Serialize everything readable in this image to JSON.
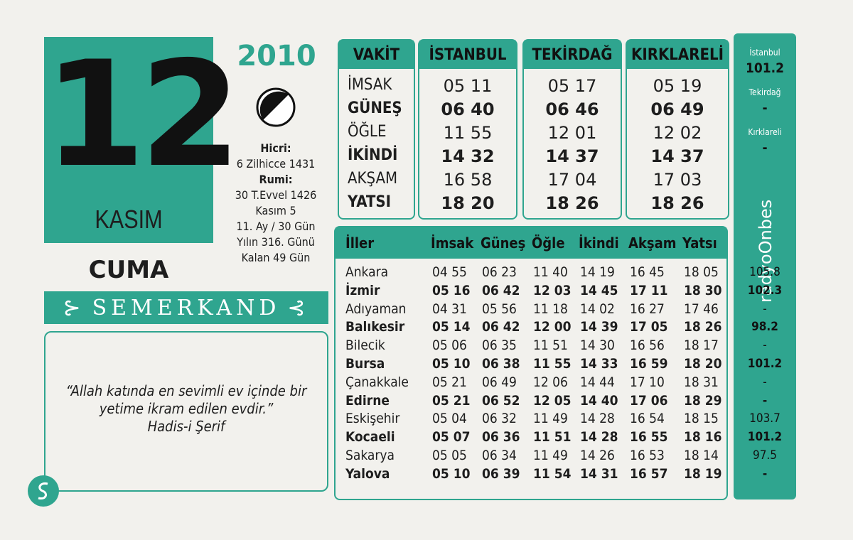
{
  "date": {
    "day": "12",
    "month": "KASIM",
    "year": "2010",
    "weekday": "CUMA"
  },
  "info": [
    {
      "text": "Hicri:",
      "bold": true
    },
    {
      "text": "6 Zilhicce 1431",
      "bold": false
    },
    {
      "text": "Rumi:",
      "bold": true
    },
    {
      "text": "30 T.Evvel 1426",
      "bold": false
    },
    {
      "text": "Kasım 5",
      "bold": false
    },
    {
      "text": "11. Ay / 30 Gün",
      "bold": false
    },
    {
      "text": "Yılın 316. Günü",
      "bold": false
    },
    {
      "text": "Kalan 49 Gün",
      "bold": false
    }
  ],
  "brand": "SEMERKAND",
  "quote": {
    "text": "“Allah katında en sevimli ev içinde bir yetime ikram edilen evdir.”",
    "source": "Hadis-i Şerif"
  },
  "prayer_table": {
    "headers": [
      "VAKİT",
      "İSTANBUL",
      "TEKİRDAĞ",
      "KIRKLARELİ"
    ],
    "rows": [
      [
        "İMSAK",
        "05 11",
        "05 17",
        "05 19"
      ],
      [
        "GÜNEŞ",
        "06 40",
        "06 46",
        "06 49"
      ],
      [
        "ÖĞLE",
        "11 55",
        "12 01",
        "12 02"
      ],
      [
        "İKİNDİ",
        "14 32",
        "14 37",
        "14 37"
      ],
      [
        "AKŞAM",
        "16 58",
        "17 04",
        "17 03"
      ],
      [
        "YATSI",
        "18 20",
        "18 26",
        "18 26"
      ]
    ]
  },
  "cities_table": {
    "headers": [
      "İller",
      "İmsak",
      "Güneş",
      "Öğle",
      "İkindi",
      "Akşam",
      "Yatsı"
    ],
    "rows": [
      [
        "Ankara",
        "04 55",
        "06 23",
        "11 40",
        "14 19",
        "16 45",
        "18 05"
      ],
      [
        "İzmir",
        "05 16",
        "06 42",
        "12 03",
        "14 45",
        "17 11",
        "18 30"
      ],
      [
        "Adıyaman",
        "04 31",
        "05 56",
        "11 18",
        "14 02",
        "16 27",
        "17 46"
      ],
      [
        "Balıkesir",
        "05 14",
        "06 42",
        "12 00",
        "14 39",
        "17 05",
        "18 26"
      ],
      [
        "Bilecik",
        "05 06",
        "06 35",
        "11 51",
        "14 30",
        "16 56",
        "18 17"
      ],
      [
        "Bursa",
        "05 10",
        "06 38",
        "11 55",
        "14 33",
        "16 59",
        "18 20"
      ],
      [
        "Çanakkale",
        "05 21",
        "06 49",
        "12 06",
        "14 44",
        "17 10",
        "18 31"
      ],
      [
        "Edirne",
        "05 21",
        "06 52",
        "12 05",
        "14 40",
        "17 06",
        "18 29"
      ],
      [
        "Eskişehir",
        "05 04",
        "06 32",
        "11 49",
        "14 28",
        "16 54",
        "18 15"
      ],
      [
        "Kocaeli",
        "05 07",
        "06 36",
        "11 51",
        "14 28",
        "16 55",
        "18 16"
      ],
      [
        "Sakarya",
        "05 05",
        "06 34",
        "11 49",
        "14 26",
        "16 53",
        "18 14"
      ],
      [
        "Yalova",
        "05 10",
        "06 39",
        "11 54",
        "14 31",
        "16 57",
        "18 19"
      ]
    ]
  },
  "radio": {
    "name": "radyoOnbes",
    "stations": [
      {
        "city": "İstanbul",
        "freq": "101.2"
      },
      {
        "city": "Tekirdağ",
        "freq": "-"
      },
      {
        "city": "Kırklareli",
        "freq": "-"
      }
    ],
    "city_freqs": [
      "105.8",
      "102.3",
      "-",
      "98.2",
      "-",
      "101.2",
      "-",
      "-",
      "103.7",
      "101.2",
      "97.5",
      "-"
    ]
  }
}
